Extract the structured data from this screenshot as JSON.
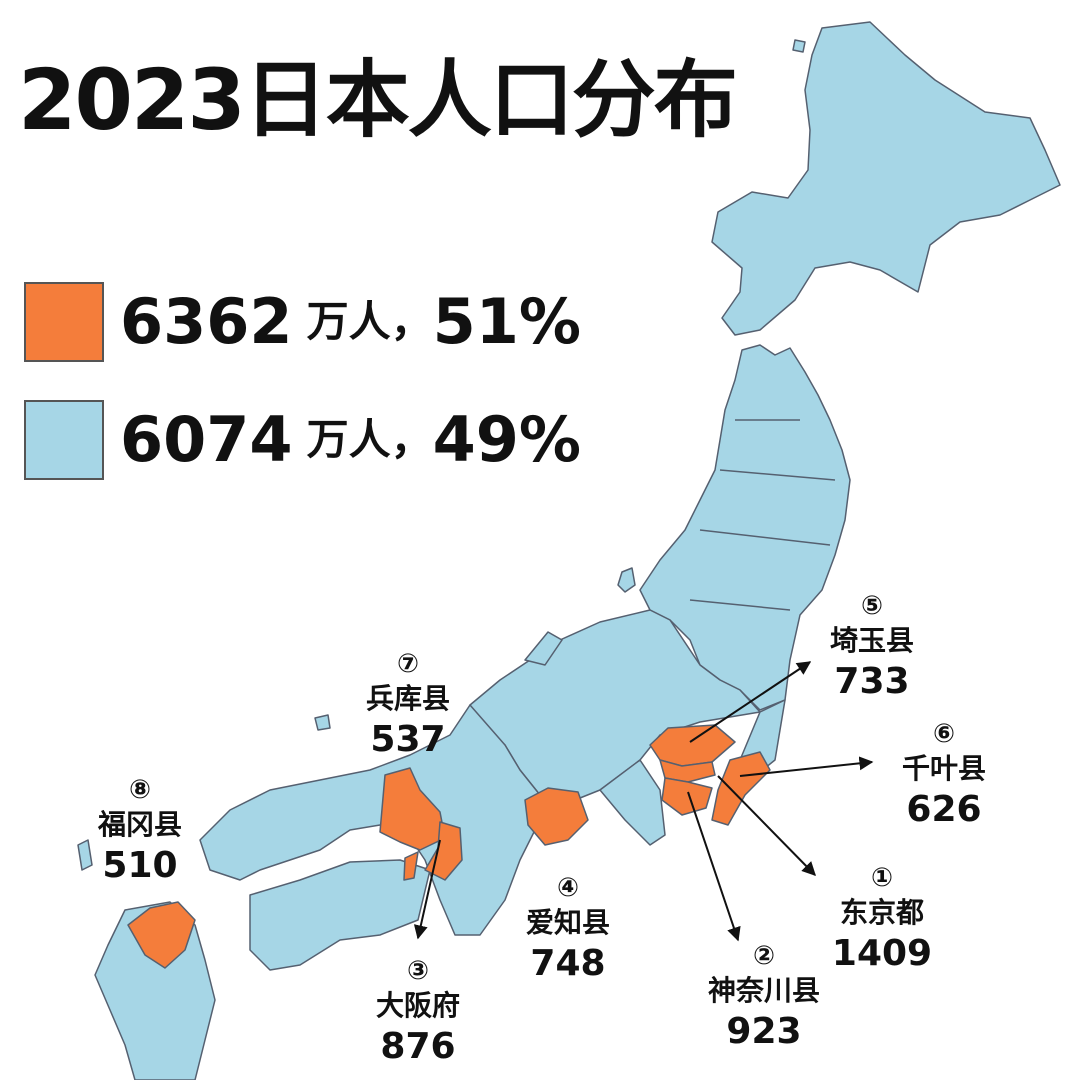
{
  "title": "2023日本人口分布",
  "colors": {
    "orange": "#F47D3B",
    "blue": "#A6D6E6",
    "border": "#556070",
    "arrow": "#111111"
  },
  "legend": [
    {
      "swatch_color": "#F47D3B",
      "value": "6362",
      "unit": "万人，",
      "percent": "51%"
    },
    {
      "swatch_color": "#A6D6E6",
      "value": "6074",
      "unit": "万人，",
      "percent": "49%"
    }
  ],
  "callouts": [
    {
      "rank": "①",
      "prefecture": "东京都",
      "population": "1409"
    },
    {
      "rank": "②",
      "prefecture": "神奈川县",
      "population": "923"
    },
    {
      "rank": "③",
      "prefecture": "大阪府",
      "population": "876"
    },
    {
      "rank": "④",
      "prefecture": "爱知县",
      "population": "748"
    },
    {
      "rank": "⑤",
      "prefecture": "埼玉县",
      "population": "733"
    },
    {
      "rank": "⑥",
      "prefecture": "千叶县",
      "population": "626"
    },
    {
      "rank": "⑦",
      "prefecture": "兵库县",
      "population": "537"
    },
    {
      "rank": "⑧",
      "prefecture": "福冈县",
      "population": "510"
    }
  ]
}
